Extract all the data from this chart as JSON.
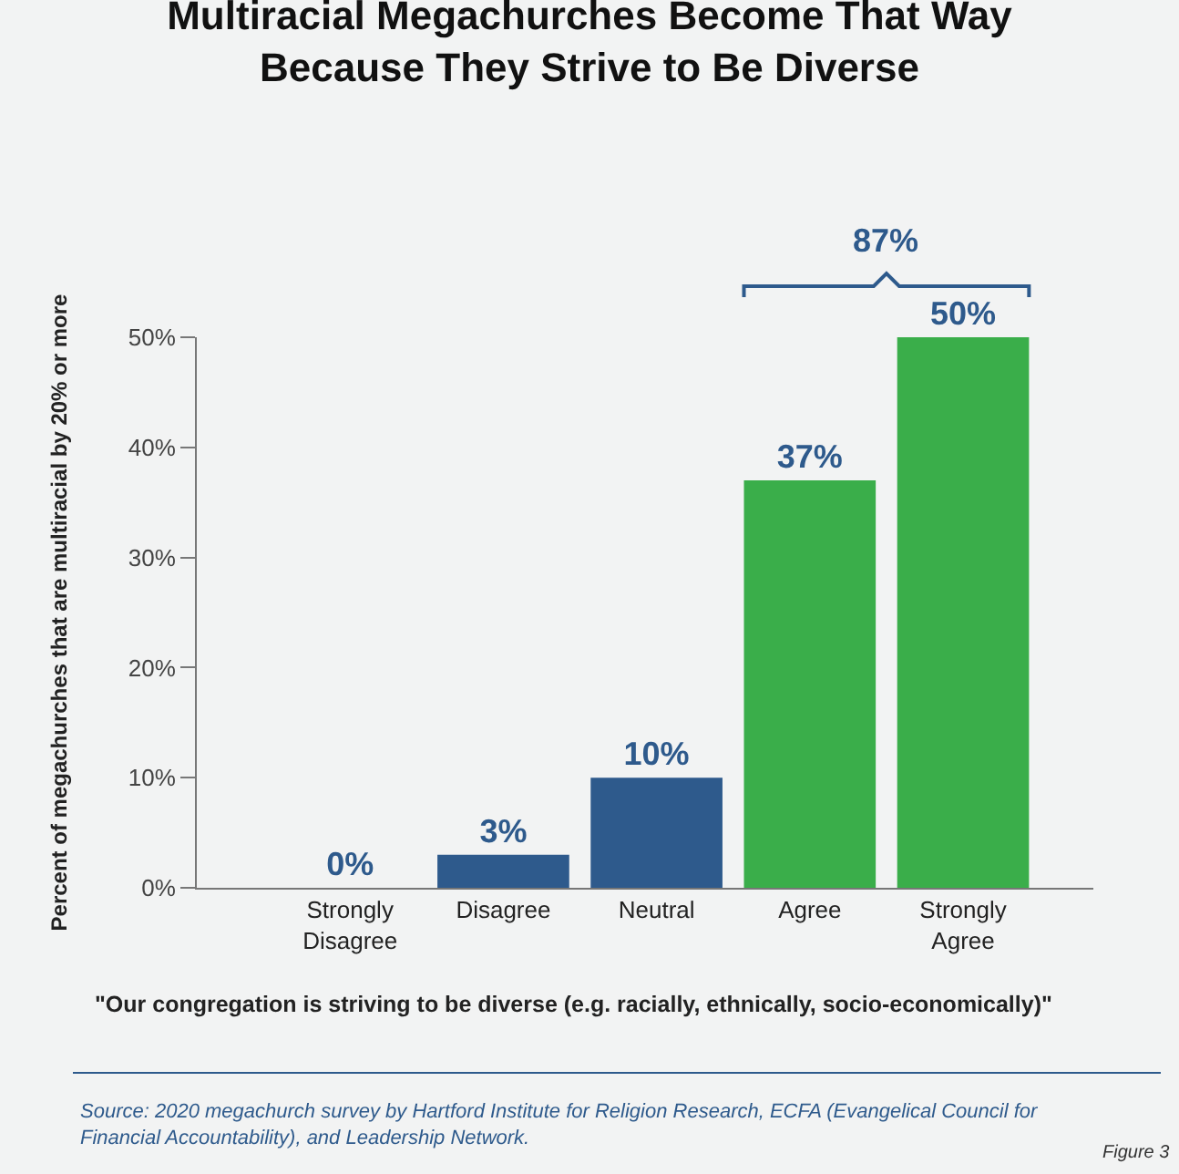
{
  "chart_data": {
    "type": "bar",
    "title": "Multiracial Megachurches Become That Way Because They Strive to Be Diverse",
    "xlabel": "\"Our congregation is striving to be diverse (e.g. racially, ethnically, socio-economically)\"",
    "ylabel": "Percent of megachurches that are multiracial by 20% or more",
    "categories": [
      "Strongly Disagree",
      "Disagree",
      "Neutral",
      "Agree",
      "Strongly Agree"
    ],
    "values": [
      0,
      3,
      10,
      37,
      50
    ],
    "colors": [
      "#2e5a8c",
      "#2e5a8c",
      "#2e5a8c",
      "#3aae4a",
      "#3aae4a"
    ],
    "value_labels": [
      "0%",
      "3%",
      "10%",
      "37%",
      "50%"
    ],
    "ylim": [
      0,
      50
    ],
    "yticks": [
      {
        "value": 0,
        "label": "0%"
      },
      {
        "value": 10,
        "label": "10%"
      },
      {
        "value": 20,
        "label": "20%"
      },
      {
        "value": 30,
        "label": "30%"
      },
      {
        "value": 40,
        "label": "40%"
      },
      {
        "value": 50,
        "label": "50%"
      }
    ],
    "grid": false,
    "legend": false,
    "annotations": [
      "87%",
      "Source: 2020 megachurch survey by Hartford Institute for Religion Research, ECFA (Evangelical Council for Financial Accountability), and Leadership Network.",
      "Figure 3"
    ]
  }
}
